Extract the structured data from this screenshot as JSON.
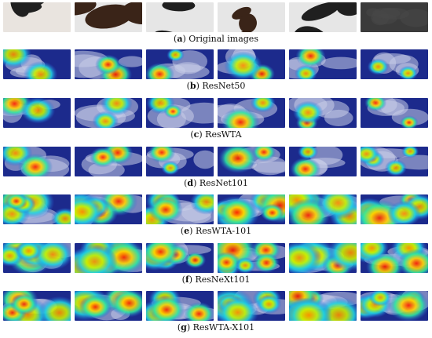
{
  "figure": {
    "rows": [
      {
        "letter": "a",
        "label": "Original images",
        "kind": "original"
      },
      {
        "letter": "b",
        "label": "ResNet50",
        "kind": "heatmap"
      },
      {
        "letter": "c",
        "label": "ResWTA",
        "kind": "heatmap"
      },
      {
        "letter": "d",
        "label": "ResNet101",
        "kind": "heatmap"
      },
      {
        "letter": "e",
        "label": "ResWTA-101",
        "kind": "heatmap"
      },
      {
        "letter": "f",
        "label": "ResNeXt101",
        "kind": "heatmap"
      },
      {
        "letter": "g",
        "label": "ResWTA-X101",
        "kind": "heatmap"
      }
    ],
    "columns_per_row": 6
  }
}
